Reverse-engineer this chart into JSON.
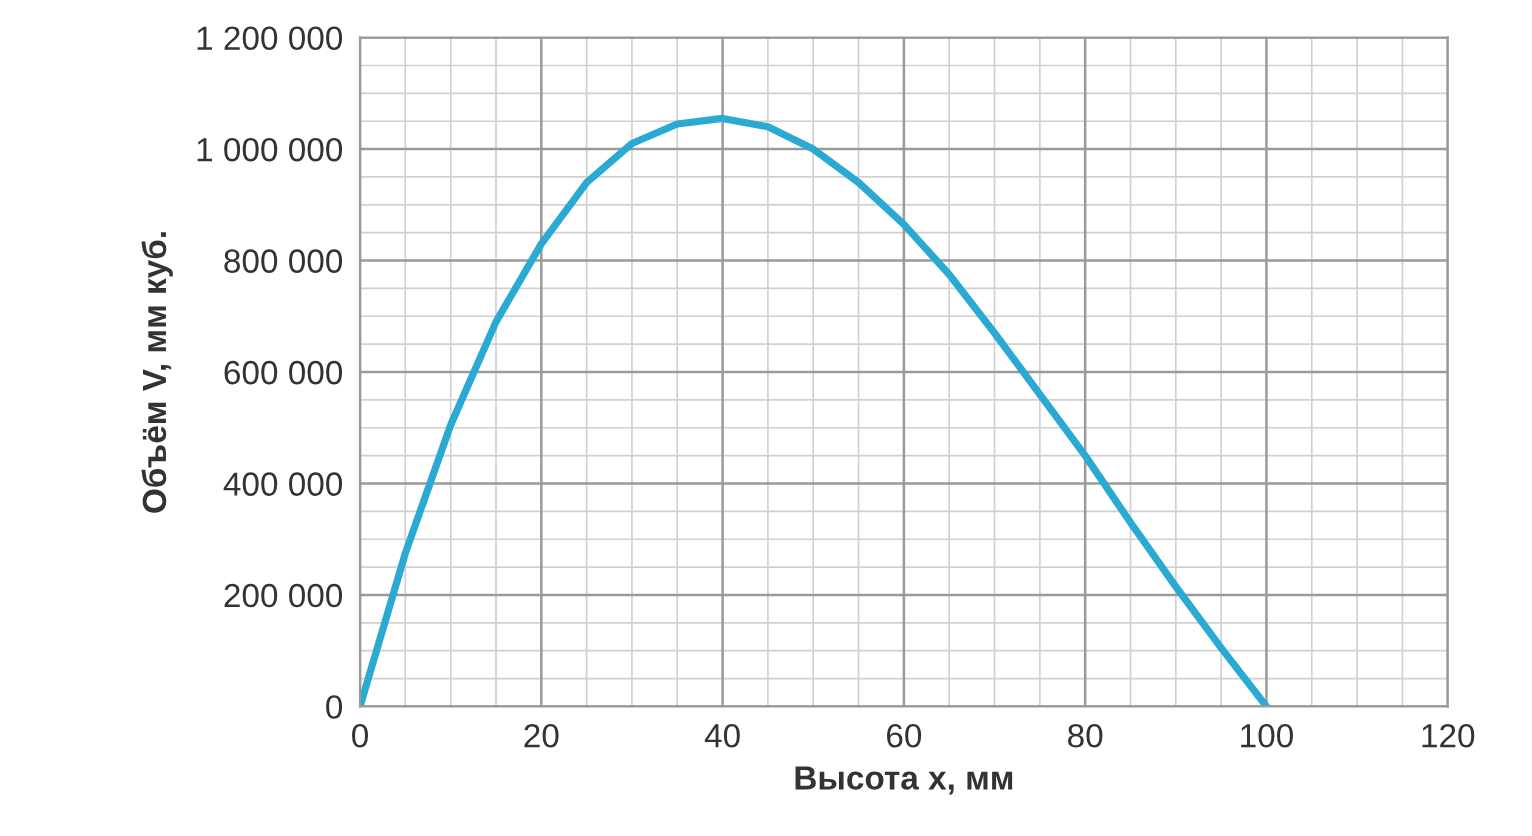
{
  "chart_data": {
    "type": "line",
    "xlabel": "Высота x, мм",
    "ylabel": "Объём V, мм куб.",
    "x": [
      0,
      5,
      10,
      15,
      20,
      25,
      30,
      35,
      40,
      45,
      50,
      55,
      60,
      65,
      70,
      75,
      80,
      85,
      90,
      95,
      100
    ],
    "series": [
      {
        "color": "#2aa9d2",
        "values": [
          0,
          275000,
          505000,
          690000,
          830000,
          940000,
          1010000,
          1045000,
          1055000,
          1040000,
          1000000,
          940000,
          865000,
          775000,
          670000,
          560000,
          450000,
          330000,
          215000,
          105000,
          0
        ]
      }
    ],
    "xlim": [
      0,
      120
    ],
    "xticks": [
      0,
      20,
      40,
      60,
      80,
      100,
      120
    ],
    "ylim": [
      0,
      1200000
    ],
    "yticks": [
      {
        "value": 0,
        "label": "0"
      },
      {
        "value": 200000,
        "label": "200 000"
      },
      {
        "value": 400000,
        "label": "400 000"
      },
      {
        "value": 600000,
        "label": "600 000"
      },
      {
        "value": 800000,
        "label": "800 000"
      },
      {
        "value": 1000000,
        "label": "1 000 000"
      },
      {
        "value": 1200000,
        "label": "1 200 000"
      }
    ],
    "grid": true,
    "marker": "none",
    "line_style": "solid"
  }
}
